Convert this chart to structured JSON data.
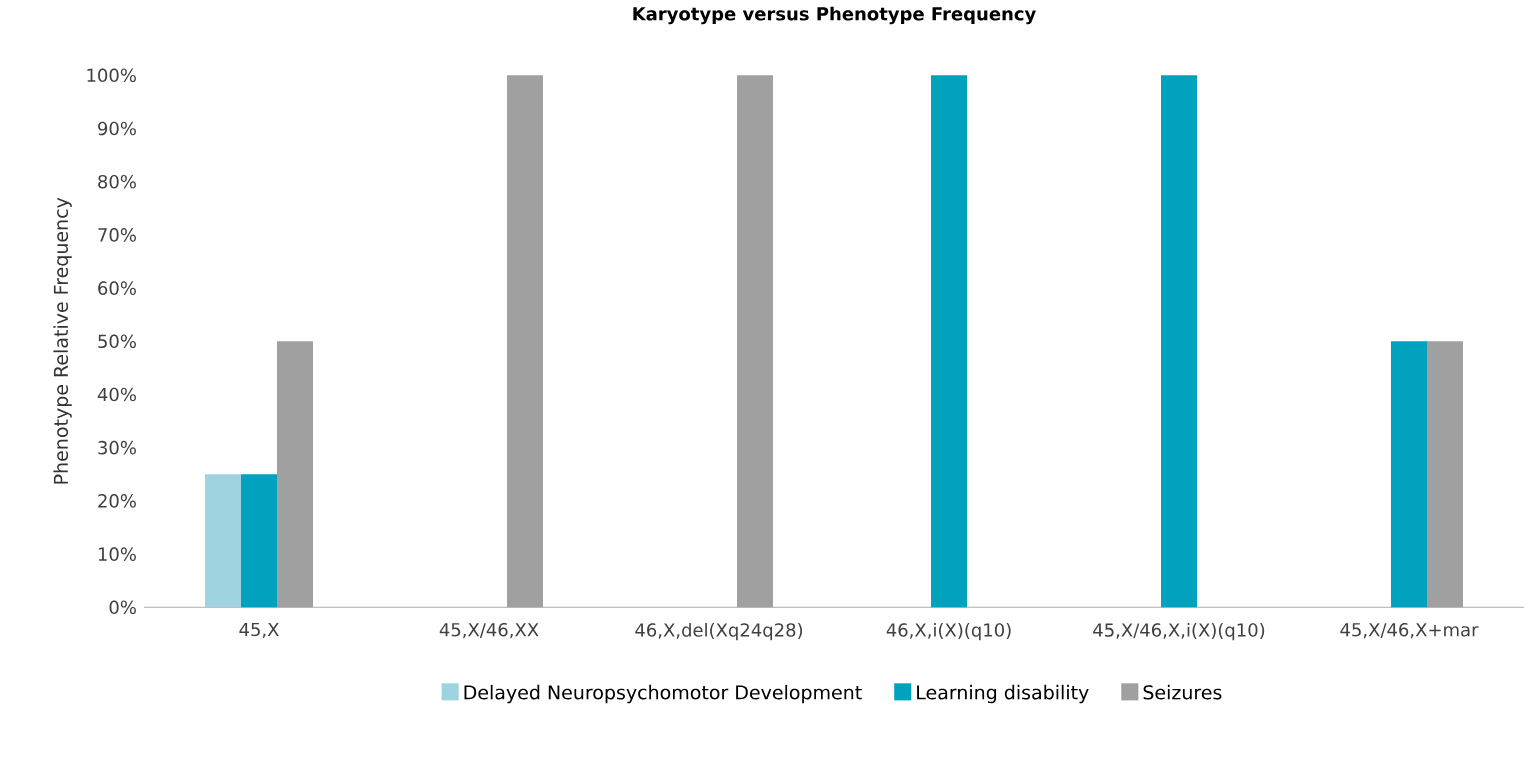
{
  "chart_data": {
    "type": "bar",
    "title": "Karyotype versus Phenotype Frequency",
    "ylabel": "Phenotype Relative Frequency",
    "categories": [
      "45,X",
      "45,X/46,XX",
      "46,X,del(Xq24q28)",
      "46,X,i(X)(q10)",
      "45,X/46,X,i(X)(q10)",
      "45,X/46,X+mar"
    ],
    "series": [
      {
        "name": "Delayed Neuropsychomotor Development",
        "color": "#9fd3e0",
        "values": [
          25,
          null,
          null,
          null,
          null,
          null
        ]
      },
      {
        "name": "Learning disability",
        "color": "#00a2bd",
        "values": [
          25,
          null,
          null,
          100,
          100,
          50
        ]
      },
      {
        "name": "Seizures",
        "color": "#a0a0a0",
        "values": [
          50,
          100,
          100,
          null,
          null,
          50
        ]
      }
    ],
    "ylim": [
      0,
      100
    ],
    "yticks": [
      {
        "value": 0,
        "label": "0%"
      },
      {
        "value": 10,
        "label": "10%"
      },
      {
        "value": 20,
        "label": "20%"
      },
      {
        "value": 30,
        "label": "30%"
      },
      {
        "value": 40,
        "label": "40%"
      },
      {
        "value": 50,
        "label": "50%"
      },
      {
        "value": 60,
        "label": "60%"
      },
      {
        "value": 70,
        "label": "70%"
      },
      {
        "value": 80,
        "label": "80%"
      },
      {
        "value": 90,
        "label": "90%"
      },
      {
        "value": 100,
        "label": "100%"
      }
    ],
    "grid": false,
    "legend": "bottom"
  }
}
